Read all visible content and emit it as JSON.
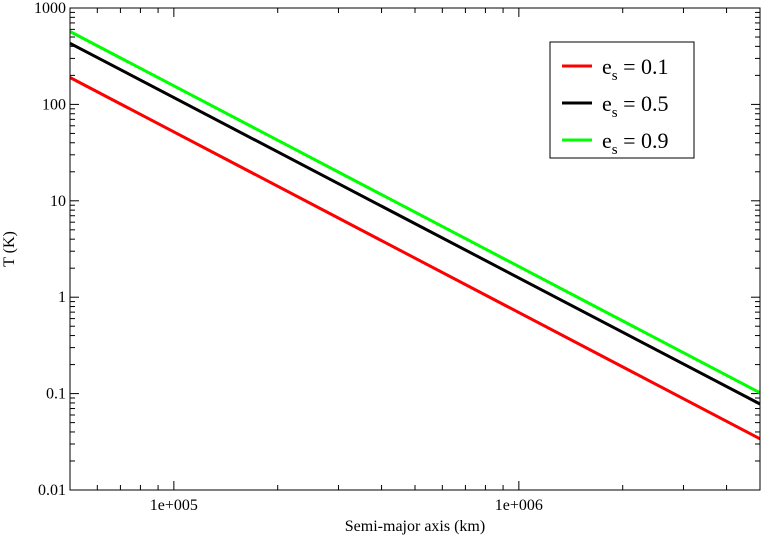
{
  "chart_data": {
    "type": "line",
    "title": "",
    "xlabel": "Semi-major axis (km)",
    "ylabel": "T (K)",
    "x_scale": "log",
    "y_scale": "log",
    "xlim": [
      50000,
      5000000
    ],
    "ylim": [
      0.01,
      1000
    ],
    "grid": false,
    "legend_position": "top-right",
    "x_ticks": [
      {
        "value": 100000,
        "label": "1e+005"
      },
      {
        "value": 1000000,
        "label": "1e+006"
      }
    ],
    "y_ticks": [
      {
        "value": 0.01,
        "label": "0.01"
      },
      {
        "value": 0.1,
        "label": "0.1"
      },
      {
        "value": 1,
        "label": "1"
      },
      {
        "value": 10,
        "label": "10"
      },
      {
        "value": 100,
        "label": "100"
      },
      {
        "value": 1000,
        "label": "1000"
      }
    ],
    "series": [
      {
        "name_base": "e",
        "name_sub": "s",
        "name_rest": " = 0.1",
        "color": "#ff0000",
        "x": [
          50000,
          5000000
        ],
        "y": [
          190,
          0.034
        ]
      },
      {
        "name_base": "e",
        "name_sub": "s",
        "name_rest": " = 0.5",
        "color": "#000000",
        "x": [
          50000,
          5000000
        ],
        "y": [
          430,
          0.078
        ]
      },
      {
        "name_base": "e",
        "name_sub": "s",
        "name_rest": " = 0.9",
        "color": "#00ff00",
        "x": [
          50000,
          5000000
        ],
        "y": [
          570,
          0.102
        ]
      }
    ]
  }
}
